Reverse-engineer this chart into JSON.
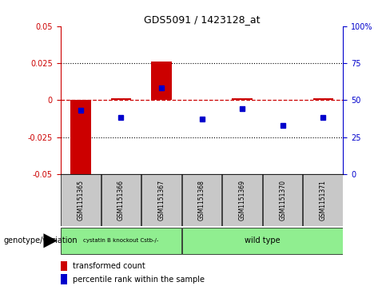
{
  "title": "GDS5091 / 1423128_at",
  "categories": [
    "GSM1151365",
    "GSM1151366",
    "GSM1151367",
    "GSM1151368",
    "GSM1151369",
    "GSM1151370",
    "GSM1151371"
  ],
  "red_values": [
    -0.05,
    0.001,
    0.026,
    0.0,
    0.001,
    0.0,
    0.001
  ],
  "blue_values_pct": [
    43,
    38,
    58,
    37,
    44,
    33,
    38
  ],
  "ylim_left": [
    -0.05,
    0.05
  ],
  "ylim_right": [
    0,
    100
  ],
  "yticks_left": [
    -0.05,
    -0.025,
    0.0,
    0.025,
    0.05
  ],
  "yticks_right": [
    0,
    25,
    50,
    75,
    100
  ],
  "dotted_lines": [
    -0.025,
    0.025
  ],
  "group1_indices": [
    0,
    1,
    2
  ],
  "group2_indices": [
    3,
    4,
    5,
    6
  ],
  "group1_label": "cystatin B knockout Cstb-/-",
  "group2_label": "wild type",
  "green_color": "#90ee90",
  "bar_color": "#cc0000",
  "dot_color": "#0000cc",
  "bg_color": "#ffffff",
  "tick_label_bg": "#c8c8c8",
  "left_axis_color": "#cc0000",
  "right_axis_color": "#0000cc",
  "red_dashed_color": "#cc0000",
  "legend_red_label": "transformed count",
  "legend_blue_label": "percentile rank within the sample",
  "genotype_label": "genotype/variation",
  "bar_width": 0.5,
  "dot_size": 5
}
